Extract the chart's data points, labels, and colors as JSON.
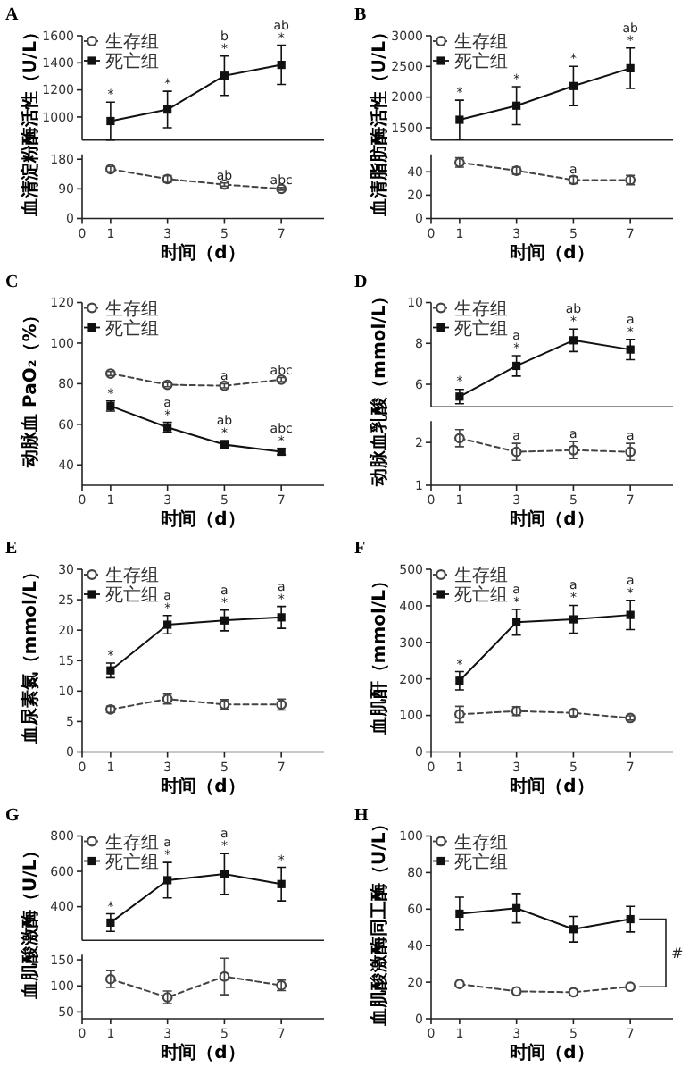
{
  "chart_data": [
    {
      "type": "line",
      "title": "A",
      "tick_labels": "y",
      "legend": "top left",
      "xlim": [
        0,
        8.5
      ],
      "ylim": [
        830,
        1600
      ],
      "yticks": [
        1000,
        1200,
        1400,
        1600
      ],
      "x": [
        1,
        3,
        5,
        7
      ],
      "series": [
        {
          "name": "生存组",
          "color": "#444444",
          "line_style": "dashed",
          "marker": "circle",
          "values": [
            null,
            null,
            null,
            null
          ]
        },
        {
          "name": "死亡组",
          "color": "#111111",
          "line_style": "solid",
          "marker": "square",
          "values": [
            970,
            1055,
            1305,
            1385
          ],
          "errors": [
            140,
            135,
            145,
            145
          ]
        }
      ],
      "annotations": [
        {
          "text": "*",
          "x": 1,
          "y": 1110
        },
        {
          "text": "*",
          "x": 3,
          "y": 1190
        },
        {
          "text": "b\n*",
          "x": 5,
          "y": 1450
        },
        {
          "text": "ab\n*",
          "x": 7,
          "y": 1530
        }
      ]
    },
    {
      "type": "line",
      "ylabel": "血清淀粉酶活性（U/L）",
      "xlabel": "时间（d）",
      "xlim": [
        0,
        8.5
      ],
      "xticks": [
        0,
        1,
        3,
        5,
        7
      ],
      "ylim": [
        0,
        195
      ],
      "yticks": [
        0,
        90,
        180
      ],
      "x": [
        1,
        3,
        5,
        7
      ],
      "series": [
        {
          "color": "#444444",
          "line_style": "dashed",
          "marker": "circle",
          "values": [
            150,
            120,
            103,
            90
          ],
          "errors": [
            8,
            10,
            5,
            4
          ]
        }
      ],
      "annotations": [
        {
          "text": "ab",
          "x": 5,
          "y": 108
        },
        {
          "text": "abc",
          "x": 7,
          "y": 94
        }
      ]
    },
    {
      "type": "line",
      "title": "B",
      "tick_labels": "y",
      "legend": "top left",
      "xlim": [
        0,
        8.5
      ],
      "ylim": [
        1300,
        3000
      ],
      "yticks": [
        1500,
        2000,
        2500,
        3000
      ],
      "x": [
        1,
        3,
        5,
        7
      ],
      "series": [
        {
          "name": "生存组",
          "color": "#444444",
          "line_style": "dashed",
          "marker": "circle",
          "values": [
            null,
            null,
            null,
            null
          ]
        },
        {
          "name": "死亡组",
          "color": "#111111",
          "line_style": "solid",
          "marker": "square",
          "values": [
            1630,
            1860,
            2180,
            2470
          ],
          "errors": [
            320,
            310,
            320,
            330
          ]
        }
      ],
      "annotations": [
        {
          "text": "*",
          "x": 1,
          "y": 1950
        },
        {
          "text": "*",
          "x": 3,
          "y": 2170
        },
        {
          "text": "*",
          "x": 5,
          "y": 2500
        },
        {
          "text": "ab\n*",
          "x": 7,
          "y": 2800
        }
      ]
    },
    {
      "type": "line",
      "ylabel": "血清脂肪酶活性（U/L）",
      "xlabel": "时间（d）",
      "xlim": [
        0,
        8.5
      ],
      "xticks": [
        0,
        1,
        3,
        5,
        7
      ],
      "ylim": [
        0,
        55
      ],
      "yticks": [
        0,
        20,
        40
      ],
      "x": [
        1,
        3,
        5,
        7
      ],
      "series": [
        {
          "color": "#444444",
          "line_style": "dashed",
          "marker": "circle",
          "values": [
            48,
            41,
            33,
            33
          ],
          "errors": [
            4,
            3,
            3,
            4
          ]
        }
      ],
      "annotations": [
        {
          "text": "a",
          "x": 5,
          "y": 36
        }
      ]
    },
    {
      "type": "line",
      "title": "C",
      "legend": "top left",
      "ylabel": "动脉血 PaO₂（%）",
      "xlabel": "时间（d）",
      "xlim": [
        0,
        8.5
      ],
      "xticks": [
        0,
        1,
        3,
        5,
        7
      ],
      "ylim": [
        30,
        120
      ],
      "yticks": [
        40,
        60,
        80,
        100,
        120
      ],
      "x": [
        1,
        3,
        5,
        7
      ],
      "series": [
        {
          "name": "生存组",
          "color": "#444444",
          "line_style": "dashed",
          "marker": "circle",
          "values": [
            85,
            79.5,
            79,
            82
          ],
          "errors": [
            1,
            1,
            1,
            1
          ]
        },
        {
          "name": "死亡组",
          "color": "#111111",
          "line_style": "solid",
          "marker": "square",
          "values": [
            69,
            58.5,
            50,
            46.5
          ],
          "errors": [
            2.5,
            2.5,
            2,
            1.5
          ]
        }
      ],
      "annotations": [
        {
          "text": "a",
          "x": 5,
          "y": 80
        },
        {
          "text": "abc",
          "x": 7,
          "y": 83
        },
        {
          "text": "*",
          "x": 1,
          "y": 71.5
        },
        {
          "text": "a\n*",
          "x": 3,
          "y": 61
        },
        {
          "text": "ab\n*",
          "x": 5,
          "y": 52
        },
        {
          "text": "abc\n*",
          "x": 7,
          "y": 48
        }
      ]
    },
    {
      "type": "line",
      "title": "D",
      "tick_labels": "y",
      "legend": "top left",
      "xlim": [
        0,
        8.5
      ],
      "ylim": [
        4.9,
        10
      ],
      "yticks": [
        6,
        8,
        10
      ],
      "x": [
        1,
        3,
        5,
        7
      ],
      "series": [
        {
          "name": "生存组",
          "color": "#444444",
          "line_style": "dashed",
          "marker": "circle",
          "values": [
            null,
            null,
            null,
            null
          ]
        },
        {
          "name": "死亡组",
          "color": "#111111",
          "line_style": "solid",
          "marker": "square",
          "values": [
            5.4,
            6.9,
            8.15,
            7.7
          ],
          "errors": [
            0.35,
            0.5,
            0.55,
            0.5
          ]
        }
      ],
      "annotations": [
        {
          "text": "*",
          "x": 1,
          "y": 5.8
        },
        {
          "text": "a\n*",
          "x": 3,
          "y": 7.4
        },
        {
          "text": "ab\n*",
          "x": 5,
          "y": 8.7
        },
        {
          "text": "a\n*",
          "x": 7,
          "y": 8.2
        }
      ]
    },
    {
      "type": "line",
      "ylabel": "动脉血乳酸（mmol/L）",
      "xlabel": "时间（d）",
      "xlim": [
        0,
        8.5
      ],
      "xticks": [
        0,
        1,
        3,
        5,
        7
      ],
      "ylim": [
        1,
        2.5
      ],
      "yticks": [
        1,
        2
      ],
      "x": [
        1,
        3,
        5,
        7
      ],
      "series": [
        {
          "color": "#444444",
          "line_style": "dashed",
          "marker": "circle",
          "values": [
            2.1,
            1.78,
            1.82,
            1.78
          ],
          "errors": [
            0.2,
            0.2,
            0.2,
            0.2
          ]
        }
      ],
      "annotations": [
        {
          "text": "a",
          "x": 3,
          "y": 1.98
        },
        {
          "text": "a",
          "x": 5,
          "y": 2.02
        },
        {
          "text": "a",
          "x": 7,
          "y": 1.98
        }
      ]
    },
    {
      "type": "line",
      "title": "E",
      "legend": "top left",
      "ylabel": "血尿素氮（mmol/L）",
      "xlabel": "时间（d）",
      "xlim": [
        0,
        8.5
      ],
      "xticks": [
        0,
        1,
        3,
        5,
        7
      ],
      "ylim": [
        0,
        30
      ],
      "yticks": [
        0,
        5,
        10,
        15,
        20,
        25,
        30
      ],
      "x": [
        1,
        3,
        5,
        7
      ],
      "series": [
        {
          "name": "生存组",
          "color": "#444444",
          "line_style": "dashed",
          "marker": "circle",
          "values": [
            7,
            8.7,
            7.8,
            7.8
          ],
          "errors": [
            0.5,
            0.8,
            0.8,
            0.9
          ]
        },
        {
          "name": "死亡组",
          "color": "#111111",
          "line_style": "solid",
          "marker": "square",
          "values": [
            13.4,
            20.9,
            21.6,
            22.1
          ],
          "errors": [
            1.2,
            1.5,
            1.7,
            1.8
          ]
        }
      ],
      "annotations": [
        {
          "text": "*",
          "x": 1,
          "y": 14.6
        },
        {
          "text": "a\n*",
          "x": 3,
          "y": 22.4
        },
        {
          "text": "a\n*",
          "x": 5,
          "y": 23.3
        },
        {
          "text": "a\n*",
          "x": 7,
          "y": 23.9
        }
      ]
    },
    {
      "type": "line",
      "title": "F",
      "legend": "top left",
      "ylabel": "血肌酐（mmol/L）",
      "xlabel": "时间（d）",
      "xlim": [
        0,
        8.5
      ],
      "xticks": [
        0,
        1,
        3,
        5,
        7
      ],
      "ylim": [
        0,
        500
      ],
      "yticks": [
        0,
        100,
        200,
        300,
        400,
        500
      ],
      "x": [
        1,
        3,
        5,
        7
      ],
      "series": [
        {
          "name": "生存组",
          "color": "#444444",
          "line_style": "dashed",
          "marker": "circle",
          "values": [
            103,
            112,
            107,
            93
          ],
          "errors": [
            22,
            12,
            8,
            6
          ]
        },
        {
          "name": "死亡组",
          "color": "#111111",
          "line_style": "solid",
          "marker": "square",
          "values": [
            195,
            355,
            363,
            375
          ],
          "errors": [
            25,
            35,
            38,
            40
          ]
        }
      ],
      "annotations": [
        {
          "text": "*",
          "x": 1,
          "y": 220
        },
        {
          "text": "a\n*",
          "x": 3,
          "y": 390
        },
        {
          "text": "a\n*",
          "x": 5,
          "y": 401
        },
        {
          "text": "a\n*",
          "x": 7,
          "y": 415
        }
      ]
    },
    {
      "type": "line",
      "title": "G",
      "tick_labels": "y",
      "legend": "top left",
      "xlim": [
        0,
        8.5
      ],
      "ylim": [
        210,
        800
      ],
      "yticks": [
        400,
        600,
        800
      ],
      "x": [
        1,
        3,
        5,
        7
      ],
      "series": [
        {
          "name": "生存组",
          "color": "#444444",
          "line_style": "dashed",
          "marker": "circle",
          "values": [
            null,
            null,
            null,
            null
          ]
        },
        {
          "name": "死亡组",
          "color": "#111111",
          "line_style": "solid",
          "marker": "square",
          "values": [
            310,
            550,
            585,
            528
          ],
          "errors": [
            50,
            100,
            115,
            95
          ]
        }
      ],
      "annotations": [
        {
          "text": "*",
          "x": 1,
          "y": 360
        },
        {
          "text": "a\n*",
          "x": 3,
          "y": 650
        },
        {
          "text": "a\n*",
          "x": 5,
          "y": 700
        },
        {
          "text": "*",
          "x": 7,
          "y": 623
        }
      ]
    },
    {
      "type": "line",
      "ylabel": "血肌酸激酶（U/L）",
      "xlabel": "时间（d）",
      "xlim": [
        0,
        8.5
      ],
      "xticks": [
        0,
        1,
        3,
        5,
        7
      ],
      "ylim": [
        37,
        160
      ],
      "yticks": [
        50,
        100,
        150
      ],
      "x": [
        1,
        3,
        5,
        7
      ],
      "series": [
        {
          "color": "#444444",
          "line_style": "dashed",
          "marker": "circle",
          "values": [
            113,
            78,
            118,
            101
          ],
          "errors": [
            16,
            12,
            35,
            10
          ]
        }
      ]
    },
    {
      "type": "line",
      "title": "H",
      "legend": "top left",
      "ylabel": "血肌酸激酶同工酶（U/L）",
      "xlabel": "时间（d）",
      "xlim": [
        0,
        8.5
      ],
      "xticks": [
        0,
        1,
        3,
        5,
        7
      ],
      "ylim": [
        0,
        100
      ],
      "yticks": [
        0,
        20,
        40,
        60,
        80,
        100
      ],
      "x": [
        1,
        3,
        5,
        7
      ],
      "series": [
        {
          "name": "生存组",
          "color": "#444444",
          "line_style": "dashed",
          "marker": "circle",
          "values": [
            19,
            15,
            14.5,
            17.5
          ]
        },
        {
          "name": "死亡组",
          "color": "#111111",
          "line_style": "solid",
          "marker": "square",
          "values": [
            57.5,
            60.5,
            49,
            54.5
          ],
          "errors": [
            9,
            8,
            7,
            7
          ]
        }
      ],
      "annotations": [
        "#"
      ]
    }
  ]
}
